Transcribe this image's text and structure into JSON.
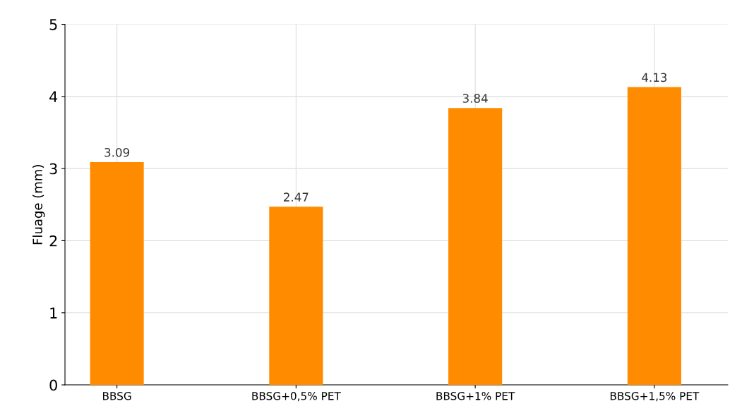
{
  "chart_data": {
    "type": "bar",
    "ylabel": "Fluage (mm)",
    "categories": [
      "BBSG",
      "BBSG+0,5% PET",
      "BBSG+1% PET",
      "BBSG+1,5% PET"
    ],
    "values": [
      3.09,
      2.47,
      3.84,
      4.13
    ],
    "color": "#ff8c00",
    "ylim": [
      0,
      5
    ],
    "yticks": [
      0,
      1,
      2,
      3,
      4,
      5
    ],
    "grid": true,
    "data_labels": true
  }
}
